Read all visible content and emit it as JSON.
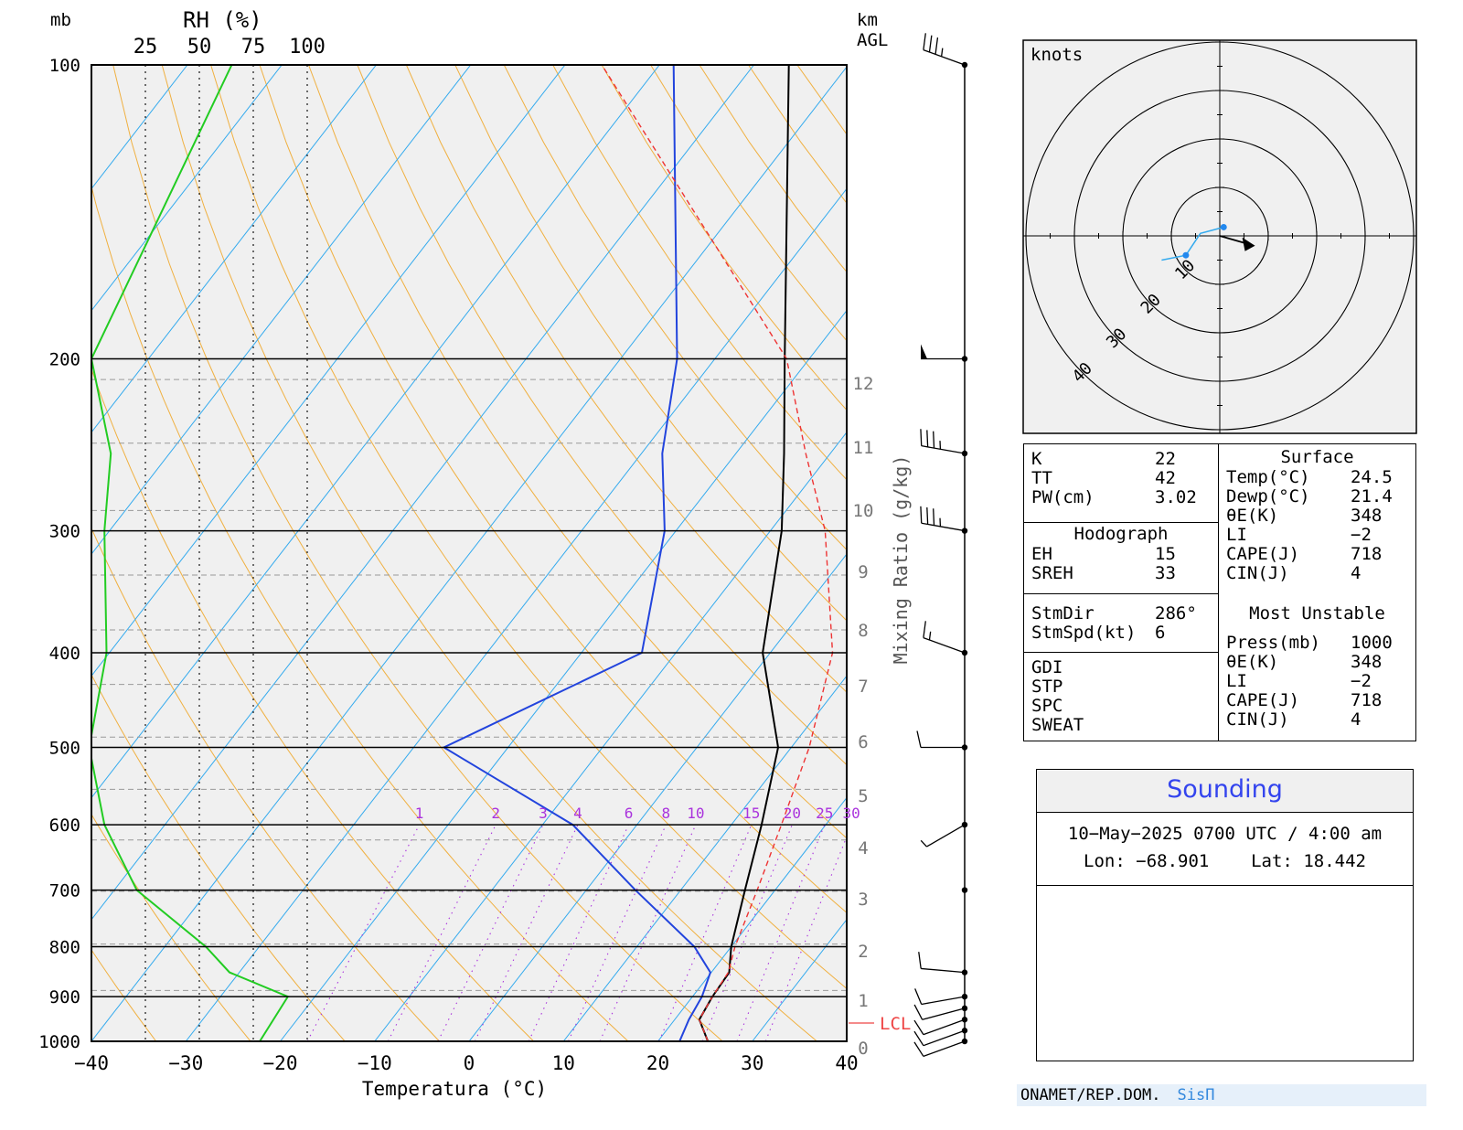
{
  "skewt": {
    "units": {
      "pressure": "mb",
      "rh": "RH (%)",
      "height": "km",
      "height2": "AGL"
    },
    "rh_ticks": [
      "25",
      "50",
      "75",
      "100"
    ],
    "xlabel": "Temperatura (°C)",
    "mixing_label": "Mixing Ratio (g/kg)",
    "lcl_label": "LCL",
    "pressure_labels": [
      "100",
      "200",
      "300",
      "400",
      "500",
      "600",
      "700",
      "800",
      "900",
      "1000"
    ],
    "temp_ticks": [
      "−40",
      "−30",
      "−20",
      "−10",
      "0",
      "10",
      "20",
      "30",
      "40"
    ],
    "height_ticks": [
      "0",
      "1",
      "2",
      "3",
      "4",
      "5",
      "6",
      "7",
      "8",
      "9",
      "10",
      "11",
      "12"
    ],
    "mixing_ticks": [
      "1",
      "2",
      "3",
      "4",
      "6",
      "8",
      "10",
      "15",
      "20",
      "25",
      "30"
    ]
  },
  "chart_data": [
    {
      "type": "line",
      "title": "",
      "xlabel": "Temperatura (°C)",
      "ylabel": "mb",
      "xlim": [
        -40,
        40
      ],
      "ylim": [
        1000,
        100
      ],
      "log_y": true,
      "series": [
        {
          "color": "#000000",
          "points": [
            [
              1000,
              25.3
            ],
            [
              950,
              22.6
            ],
            [
              900,
              22.1
            ],
            [
              850,
              21.9
            ],
            [
              800,
              20.0
            ],
            [
              700,
              16.8
            ],
            [
              600,
              13.2
            ],
            [
              500,
              8.6
            ],
            [
              400,
              -0.8
            ],
            [
              300,
              -8.8
            ],
            [
              250,
              -14.9
            ],
            [
              200,
              -22.6
            ],
            [
              100,
              -46.3
            ]
          ]
        },
        {
          "color": "#2244dd",
          "points": [
            [
              1000,
              22.3
            ],
            [
              950,
              21.5
            ],
            [
              900,
              21.0
            ],
            [
              850,
              19.9
            ],
            [
              800,
              16.1
            ],
            [
              700,
              5.2
            ],
            [
              600,
              -6.8
            ],
            [
              500,
              -26.8
            ],
            [
              400,
              -13.6
            ],
            [
              300,
              -21.2
            ],
            [
              250,
              -27.8
            ],
            [
              200,
              -34.0
            ],
            [
              100,
              -58.5
            ]
          ]
        },
        {
          "color": "#ee3333",
          "points": [
            [
              1000,
              25.3
            ],
            [
              950,
              22.6
            ],
            [
              900,
              22.1
            ],
            [
              850,
              21.8
            ],
            [
              800,
              20.4
            ],
            [
              700,
              18.1
            ],
            [
              600,
              15.3
            ],
            [
              500,
              11.9
            ],
            [
              400,
              6.6
            ],
            [
              300,
              -4.2
            ],
            [
              250,
              -12.6
            ],
            [
              200,
              -22.4
            ],
            [
              100,
              -66.1
            ]
          ]
        },
        {
          "color": "#22cc22",
          "points": [
            [
              1000,
              78
            ],
            [
              900,
              91
            ],
            [
              850,
              64
            ],
            [
              800,
              53
            ],
            [
              700,
              21
            ],
            [
              600,
              6
            ],
            [
              500,
              -1
            ],
            [
              400,
              7
            ],
            [
              300,
              6
            ],
            [
              250,
              9
            ],
            [
              200,
              0
            ],
            [
              100,
              65
            ]
          ]
        }
      ],
      "wind_barbs": [
        {
          "pressure": 1000,
          "dir": 250,
          "speed": 10
        },
        {
          "pressure": 975,
          "dir": 250,
          "speed": 10
        },
        {
          "pressure": 950,
          "dir": 250,
          "speed": 10
        },
        {
          "pressure": 925,
          "dir": 255,
          "speed": 10
        },
        {
          "pressure": 900,
          "dir": 260,
          "speed": 10
        },
        {
          "pressure": 850,
          "dir": 275,
          "speed": 10
        },
        {
          "pressure": 700,
          "dir": 205,
          "speed": 0
        },
        {
          "pressure": 600,
          "dir": 240,
          "speed": 5
        },
        {
          "pressure": 500,
          "dir": 270,
          "speed": 10
        },
        {
          "pressure": 400,
          "dir": 290,
          "speed": 15
        },
        {
          "pressure": 300,
          "dir": 280,
          "speed": 35
        },
        {
          "pressure": 250,
          "dir": 280,
          "speed": 35
        },
        {
          "pressure": 200,
          "dir": 270,
          "speed": 50
        },
        {
          "pressure": 100,
          "dir": 290,
          "speed": 35
        }
      ]
    },
    {
      "type": "scatter",
      "title": "knots",
      "rings": [
        10,
        20,
        30,
        40
      ],
      "hodograph_points": [
        [
          0.8,
          1.8
        ],
        [
          -4,
          0.5
        ],
        [
          -7,
          -4
        ],
        [
          -12,
          -5
        ]
      ],
      "storm_motion": {
        "dir": 286,
        "speed": 6
      }
    }
  ],
  "hodograph": {
    "units": "knots",
    "ring_labels": [
      "10",
      "20",
      "30",
      "40"
    ]
  },
  "indices": {
    "k": {
      "label": "K",
      "value": "22"
    },
    "tt": {
      "label": "TT",
      "value": "42"
    },
    "pw": {
      "label": "PW(cm)",
      "value": "3.02"
    },
    "hodo_header": "Hodograph",
    "eh": {
      "label": "EH",
      "value": "15"
    },
    "sreh": {
      "label": "SREH",
      "value": "33"
    },
    "stmdir": {
      "label": "StmDir",
      "value": "286°"
    },
    "stmspd": {
      "label": "StmSpd(kt)",
      "value": "6"
    },
    "gdi": {
      "label": "GDI"
    },
    "stp": {
      "label": "STP"
    },
    "spc": {
      "label": "SPC"
    },
    "sweat": {
      "label": "SWEAT"
    },
    "surface_header": "Surface",
    "s_temp": {
      "label": "Temp(°C)",
      "value": "24.5"
    },
    "s_dewp": {
      "label": "Dewp(°C)",
      "value": "21.4"
    },
    "s_thetae": {
      "label": "θE(K)",
      "value": "348"
    },
    "s_li": {
      "label": "LI",
      "value": "−2"
    },
    "s_cape": {
      "label": "CAPE(J)",
      "value": "718"
    },
    "s_cin": {
      "label": "CIN(J)",
      "value": "4"
    },
    "mu_header": "Most Unstable",
    "mu_press": {
      "label": "Press(mb)",
      "value": "1000"
    },
    "mu_thetae": {
      "label": "θE(K)",
      "value": "348"
    },
    "mu_li": {
      "label": "LI",
      "value": "−2"
    },
    "mu_cape": {
      "label": "CAPE(J)",
      "value": "718"
    },
    "mu_cin": {
      "label": "CIN(J)",
      "value": "4"
    }
  },
  "sounding": {
    "title": "Sounding",
    "datetime": "10−May−2025 0700  UTC / 4:00 am",
    "lon_label": "Lon:",
    "lon": "−68.901",
    "lat_label": "Lat:",
    "lat": "18.442"
  },
  "footer": {
    "org": "ONAMET/REP.DOM.",
    "brand": "SisΠ"
  },
  "colors": {
    "temperature": "#000000",
    "dewpoint": "#2244dd",
    "parcel": "#ee3333",
    "rh": "#22cc22",
    "dry_adiabat": "#f0b040",
    "isotherm": "#33aaee",
    "mixing": "#aa33dd"
  }
}
